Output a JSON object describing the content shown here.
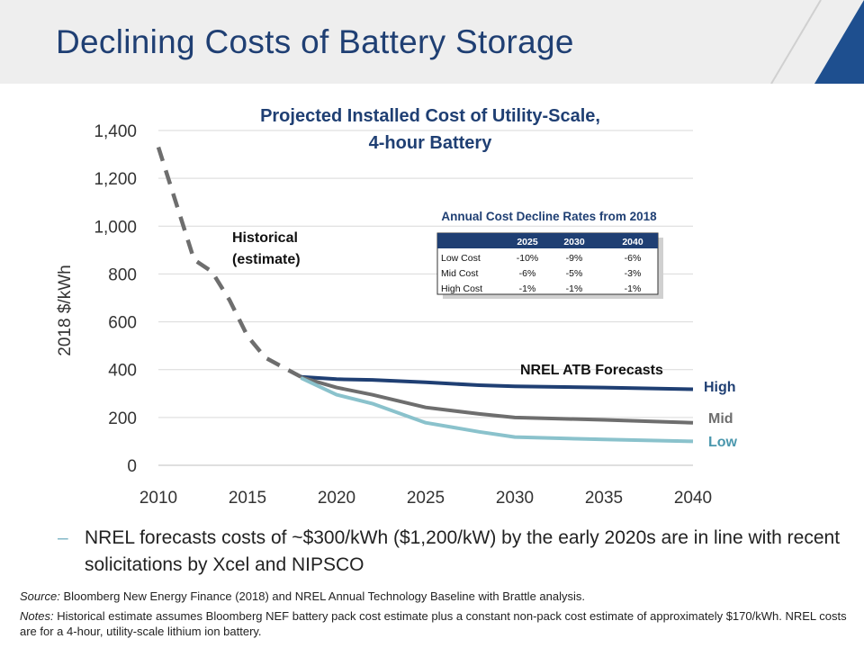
{
  "slide": {
    "title": "Declining Costs of Battery Storage",
    "accent_color": "#1f3f73",
    "corner_color": "#1e4f8f"
  },
  "chart_data": {
    "type": "line",
    "title": "Projected Installed Cost of Utility-Scale, 4-hour Battery",
    "title_lines": [
      "Projected Installed Cost of Utility-Scale,",
      "4-hour Battery"
    ],
    "ylabel": "2018 $/kWh",
    "xlabel": "",
    "xlim": [
      2010,
      2040
    ],
    "ylim": [
      0,
      1400
    ],
    "x_ticks": [
      "2010",
      "2015",
      "2020",
      "2025",
      "2030",
      "2035",
      "2040"
    ],
    "y_ticks": [
      "0",
      "200",
      "400",
      "600",
      "800",
      "1,000",
      "1,200",
      "1,400"
    ],
    "grid": "horizontal",
    "series": [
      {
        "name": "Historical (estimate)",
        "label_lines": [
          "Historical",
          "(estimate)"
        ],
        "style": "dashed",
        "color": "#6e6e6e",
        "points": [
          [
            2010,
            1330
          ],
          [
            2012,
            860
          ],
          [
            2013,
            810
          ],
          [
            2014,
            690
          ],
          [
            2015,
            540
          ],
          [
            2016,
            450
          ],
          [
            2017,
            410
          ],
          [
            2018,
            370
          ]
        ]
      },
      {
        "name": "High",
        "color": "#1f3f73",
        "points": [
          [
            2018,
            370
          ],
          [
            2020,
            360
          ],
          [
            2022,
            357
          ],
          [
            2025,
            347
          ],
          [
            2028,
            335
          ],
          [
            2030,
            330
          ],
          [
            2035,
            325
          ],
          [
            2040,
            318
          ]
        ]
      },
      {
        "name": "Mid",
        "color": "#6e6e6e",
        "points": [
          [
            2018,
            368
          ],
          [
            2020,
            325
          ],
          [
            2022,
            295
          ],
          [
            2025,
            242
          ],
          [
            2028,
            215
          ],
          [
            2030,
            200
          ],
          [
            2035,
            190
          ],
          [
            2040,
            178
          ]
        ]
      },
      {
        "name": "Low",
        "color": "#8ac2cc",
        "points": [
          [
            2018,
            365
          ],
          [
            2020,
            295
          ],
          [
            2022,
            258
          ],
          [
            2025,
            178
          ],
          [
            2028,
            140
          ],
          [
            2030,
            118
          ],
          [
            2035,
            108
          ],
          [
            2040,
            100
          ]
        ]
      }
    ],
    "forecast_label": "NREL ATB Forecasts",
    "table": {
      "title": "Annual Cost Decline Rates from 2018",
      "columns": [
        "",
        "2025",
        "2030",
        "2040"
      ],
      "rows": [
        [
          "Low Cost",
          "-10%",
          "-9%",
          "-6%"
        ],
        [
          "Mid Cost",
          "-6%",
          "-5%",
          "-3%"
        ],
        [
          "High Cost",
          "-1%",
          "-1%",
          "-1%"
        ]
      ]
    }
  },
  "bullet": "NREL forecasts costs of ~$300/kWh ($1,200/kW) by the early 2020s are in line with recent solicitations by Xcel and NIPSCO",
  "source_label": "Source:",
  "source_text": "Bloomberg New Energy Finance (2018) and NREL Annual Technology Baseline with Brattle analysis.",
  "notes_label": "Notes:",
  "notes_text": "Historical estimate assumes Bloomberg NEF battery pack cost estimate plus a constant non-pack cost estimate of approximately $170/kWh.  NREL costs are for a 4-hour, utility-scale lithium ion battery."
}
